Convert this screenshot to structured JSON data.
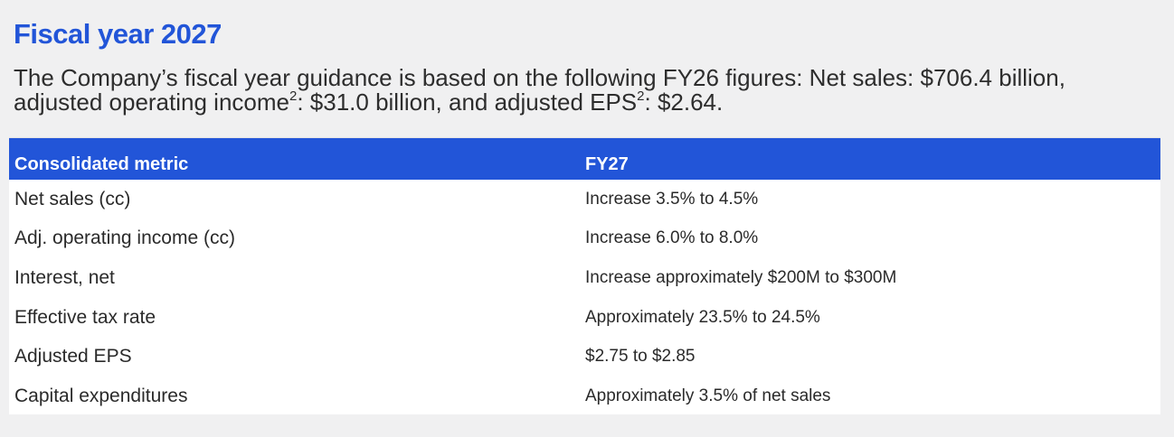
{
  "title": "Fiscal year 2027",
  "intro": {
    "part1": "The Company’s fiscal year guidance is based on the following FY26 figures: Net sales: $706.4 billion,",
    "part2": "adjusted operating income",
    "sup1": "2",
    "part3": ": $31.0 billion, and adjusted EPS",
    "sup2": "2",
    "part4": ": $2.64."
  },
  "table": {
    "headers": {
      "metric": "Consolidated metric",
      "fy": "FY27"
    },
    "rows": [
      {
        "metric": "Net sales (cc)",
        "fy": "Increase 3.5% to 4.5%"
      },
      {
        "metric": "Adj. operating income (cc)",
        "fy": "Increase 6.0% to 8.0%"
      },
      {
        "metric": "Interest, net",
        "fy": "Increase approximately $200M to $300M"
      },
      {
        "metric": "Effective tax rate",
        "fy": "Approximately 23.5% to 24.5%"
      },
      {
        "metric": "Adjusted EPS",
        "fy": "$2.75 to $2.85"
      },
      {
        "metric": "Capital expenditures",
        "fy": "Approximately 3.5% of net sales"
      }
    ]
  },
  "colors": {
    "accent": "#2255d8",
    "background": "#f0f0f1"
  }
}
